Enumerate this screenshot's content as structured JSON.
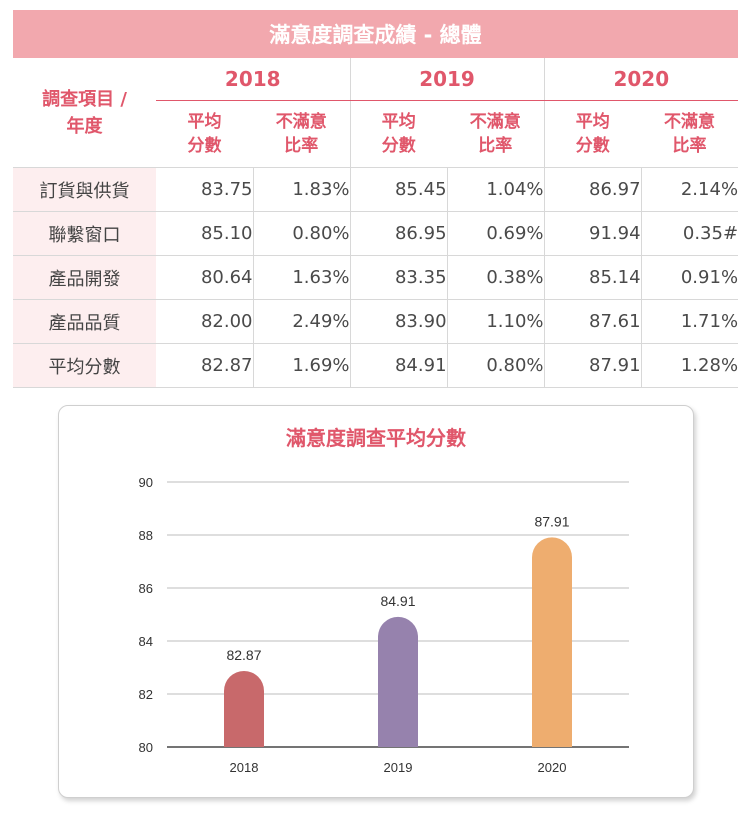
{
  "title": "滿意度調查成績 - 總體",
  "table": {
    "corner_line1": "調查項目 /",
    "corner_line2": "年度",
    "years": [
      "2018",
      "2019",
      "2020"
    ],
    "sub_avg_1": "平均",
    "sub_avg_2": "分數",
    "sub_dis_1": "不滿意",
    "sub_dis_2": "比率",
    "rows": [
      {
        "label": "訂貨與供貨",
        "v": [
          "83.75",
          "1.83%",
          "85.45",
          "1.04%",
          "86.97",
          "2.14%"
        ]
      },
      {
        "label": "聯繫窗口",
        "v": [
          "85.10",
          "0.80%",
          "86.95",
          "0.69%",
          "91.94",
          "0.35#"
        ]
      },
      {
        "label": "產品開發",
        "v": [
          "80.64",
          "1.63%",
          "83.35",
          "0.38%",
          "85.14",
          "0.91%"
        ]
      },
      {
        "label": "產品品質",
        "v": [
          "82.00",
          "2.49%",
          "83.90",
          "1.10%",
          "87.61",
          "1.71%"
        ]
      },
      {
        "label": "平均分數",
        "v": [
          "82.87",
          "1.69%",
          "84.91",
          "0.80%",
          "87.91",
          "1.28%"
        ]
      }
    ]
  },
  "chart_data": {
    "type": "bar",
    "title": "滿意度調查平均分數",
    "categories": [
      "2018",
      "2019",
      "2020"
    ],
    "values": [
      82.87,
      84.91,
      87.91
    ],
    "value_labels": [
      "82.87",
      "84.91",
      "87.91"
    ],
    "ylim": [
      80,
      90
    ],
    "yticks": [
      "80",
      "82",
      "84",
      "86",
      "88",
      "90"
    ],
    "grid": true,
    "colors": [
      "#c8696b",
      "#9682ad",
      "#eead6f"
    ]
  }
}
